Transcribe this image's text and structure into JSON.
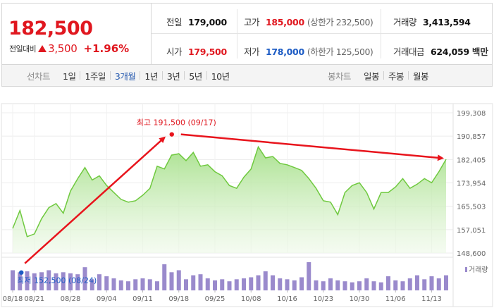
{
  "summary": {
    "current_price": "182,500",
    "change_label": "전일대비",
    "change_value": "3,500",
    "change_rate": "+1.96%",
    "colors": {
      "up": "#e0171f",
      "down": "#1c5bc4"
    }
  },
  "quote": {
    "prev_close": {
      "label": "전일",
      "value": "179,000"
    },
    "open": {
      "label": "시가",
      "value": "179,500"
    },
    "high": {
      "label": "고가",
      "value": "185,000",
      "sub": "(상한가 232,500)"
    },
    "low": {
      "label": "저가",
      "value": "178,000",
      "sub": "(하한가 125,500)"
    },
    "volume": {
      "label": "거래량",
      "value": "3,413,594"
    },
    "trade_value": {
      "label": "거래대금",
      "value": "624,059",
      "unit": "백만"
    }
  },
  "line_tabs": {
    "label": "선차트",
    "items": [
      "1일",
      "1주일",
      "3개월",
      "1년",
      "3년",
      "5년",
      "10년"
    ],
    "active": "3개월"
  },
  "candle_tabs": {
    "label": "봉차트",
    "items": [
      "일봉",
      "주봉",
      "월봉"
    ]
  },
  "chart_data": {
    "type": "area",
    "y_ticks": [
      "199,308",
      "190,857",
      "182,405",
      "173,954",
      "165,503",
      "157,051",
      "148,600"
    ],
    "ylim": [
      148600,
      199308
    ],
    "x_ticks": [
      "08/18",
      "08/21",
      "08/28",
      "09/04",
      "09/11",
      "09/18",
      "09/25",
      "10/08",
      "10/16",
      "10/23",
      "10/30",
      "11/06",
      "11/13"
    ],
    "x_tick_index": [
      0,
      3,
      8,
      13,
      18,
      23,
      28,
      33,
      38,
      43,
      48,
      53,
      58
    ],
    "series": [
      {
        "values": [
          157500,
          164000,
          154500,
          155500,
          161000,
          165000,
          166500,
          163000,
          171000,
          175500,
          179500,
          175000,
          176500,
          173000,
          170500,
          168000,
          167000,
          167500,
          169500,
          172000,
          180000,
          179000,
          184000,
          184500,
          182000,
          185000,
          180000,
          180500,
          178000,
          176500,
          173000,
          172000,
          176000,
          179000,
          187000,
          183000,
          183500,
          181000,
          180500,
          179500,
          178500,
          175500,
          172000,
          167500,
          167000,
          162500,
          170500,
          173000,
          174000,
          170500,
          164500,
          170500,
          170500,
          172500,
          175500,
          172000,
          173500,
          175500,
          174000,
          178000,
          182500
        ],
        "color": "#6fc93f"
      }
    ],
    "volume": {
      "label": "거래량",
      "color": "#9a8acc",
      "values": [
        20,
        18,
        19,
        17,
        18,
        20,
        17,
        18,
        17,
        16,
        23,
        11,
        16,
        14,
        12,
        10,
        9,
        11,
        12,
        11,
        9,
        26,
        18,
        20,
        11,
        15,
        16,
        12,
        10,
        11,
        9,
        11,
        12,
        13,
        15,
        19,
        15,
        12,
        11,
        10,
        13,
        28,
        10,
        9,
        12,
        10,
        9,
        8,
        9,
        12,
        9,
        8,
        14,
        10,
        9,
        12,
        15,
        11,
        14,
        12,
        15
      ]
    },
    "annotations": {
      "max": {
        "text": "최고 191,500 (09/17)",
        "value": 191500,
        "index": 23
      },
      "min": {
        "text": "최저 152,500 (08/24)",
        "value": 152500,
        "index": 5
      }
    }
  }
}
